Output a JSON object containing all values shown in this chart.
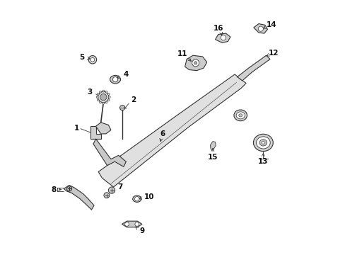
{
  "background_color": "#ffffff",
  "figure_width": 4.89,
  "figure_height": 3.6,
  "dpi": 100,
  "line_color": "#333333",
  "arrow_color": "#333333",
  "label_font_size": 7.5
}
